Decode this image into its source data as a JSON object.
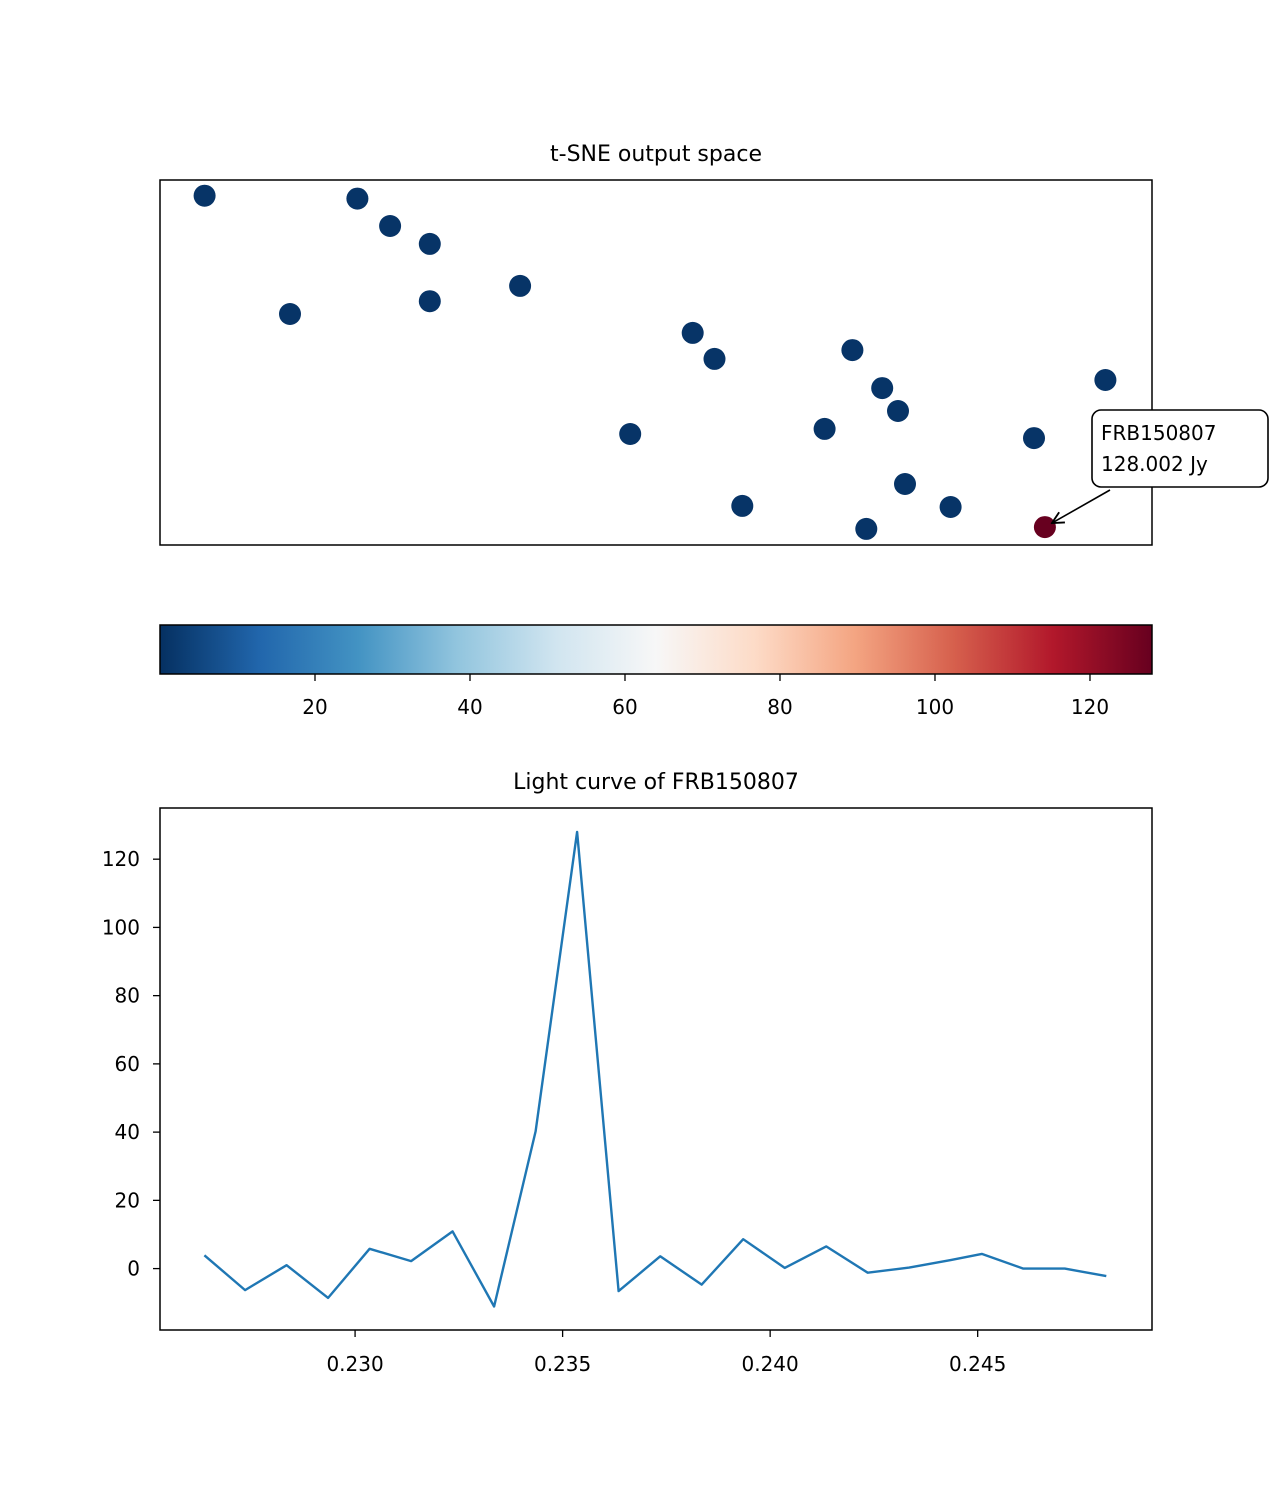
{
  "chart_data": [
    {
      "type": "scatter",
      "title": "t-SNE output space",
      "xlim": [
        0,
        100
      ],
      "ylim": [
        0,
        100
      ],
      "xticks": false,
      "yticks": false,
      "colormap": "RdBu_r",
      "points": [
        {
          "x": 4.5,
          "y": 95.7,
          "value": 1
        },
        {
          "x": 19.9,
          "y": 94.9,
          "value": 1
        },
        {
          "x": 23.2,
          "y": 87.4,
          "value": 1
        },
        {
          "x": 27.2,
          "y": 82.5,
          "value": 1
        },
        {
          "x": 13.1,
          "y": 63.3,
          "value": 1
        },
        {
          "x": 27.2,
          "y": 66.8,
          "value": 1
        },
        {
          "x": 36.3,
          "y": 71.0,
          "value": 1
        },
        {
          "x": 53.7,
          "y": 58.1,
          "value": 1
        },
        {
          "x": 55.9,
          "y": 51.0,
          "value": 1
        },
        {
          "x": 69.8,
          "y": 53.4,
          "value": 1
        },
        {
          "x": 72.8,
          "y": 43.0,
          "value": 1
        },
        {
          "x": 74.4,
          "y": 36.7,
          "value": 1
        },
        {
          "x": 95.3,
          "y": 45.2,
          "value": 1
        },
        {
          "x": 47.4,
          "y": 30.4,
          "value": 1
        },
        {
          "x": 67.0,
          "y": 31.8,
          "value": 1
        },
        {
          "x": 88.1,
          "y": 29.3,
          "value": 1
        },
        {
          "x": 75.1,
          "y": 16.7,
          "value": 1
        },
        {
          "x": 58.7,
          "y": 10.7,
          "value": 1
        },
        {
          "x": 79.7,
          "y": 10.4,
          "value": 1
        },
        {
          "x": 71.2,
          "y": 4.4,
          "value": 1
        },
        {
          "x": 89.2,
          "y": 4.9,
          "value": 128.002
        }
      ],
      "highlight": {
        "index": 20,
        "label_name": "FRB150807",
        "label_value": "128.002 Jy"
      }
    },
    {
      "type": "colorbar",
      "cmap": "RdBu_r",
      "range": [
        0,
        128.002
      ],
      "ticks": [
        20,
        40,
        60,
        80,
        100,
        120
      ],
      "tick_labels": [
        "20",
        "40",
        "60",
        "80",
        "100",
        "120"
      ]
    },
    {
      "type": "line",
      "title": "Light curve of FRB150807",
      "xlim": [
        0.2253,
        0.2492
      ],
      "ylim": [
        -18,
        135
      ],
      "xticks": [
        0.23,
        0.235,
        0.24,
        0.245
      ],
      "xtick_labels": [
        "0.230",
        "0.235",
        "0.240",
        "0.245"
      ],
      "yticks": [
        0,
        20,
        40,
        60,
        80,
        100,
        120
      ],
      "ytick_labels": [
        "0",
        "20",
        "40",
        "60",
        "80",
        "100",
        "120"
      ],
      "color": "#1f77b4",
      "x": [
        0.22637,
        0.22735,
        0.22835,
        0.22935,
        0.23035,
        0.23135,
        0.23235,
        0.23335,
        0.23435,
        0.23535,
        0.23635,
        0.23735,
        0.23835,
        0.23935,
        0.24035,
        0.24135,
        0.24235,
        0.24335,
        0.24435,
        0.2451,
        0.2461,
        0.2471,
        0.2481
      ],
      "y": [
        3.9,
        -6.3,
        1.0,
        -8.6,
        5.8,
        2.2,
        10.9,
        -11.1,
        40.2,
        128.0,
        -6.6,
        3.6,
        -4.7,
        8.6,
        0.2,
        6.5,
        -1.2,
        0.3,
        2.5,
        4.3,
        0.0,
        0.0,
        -2.2
      ]
    }
  ]
}
